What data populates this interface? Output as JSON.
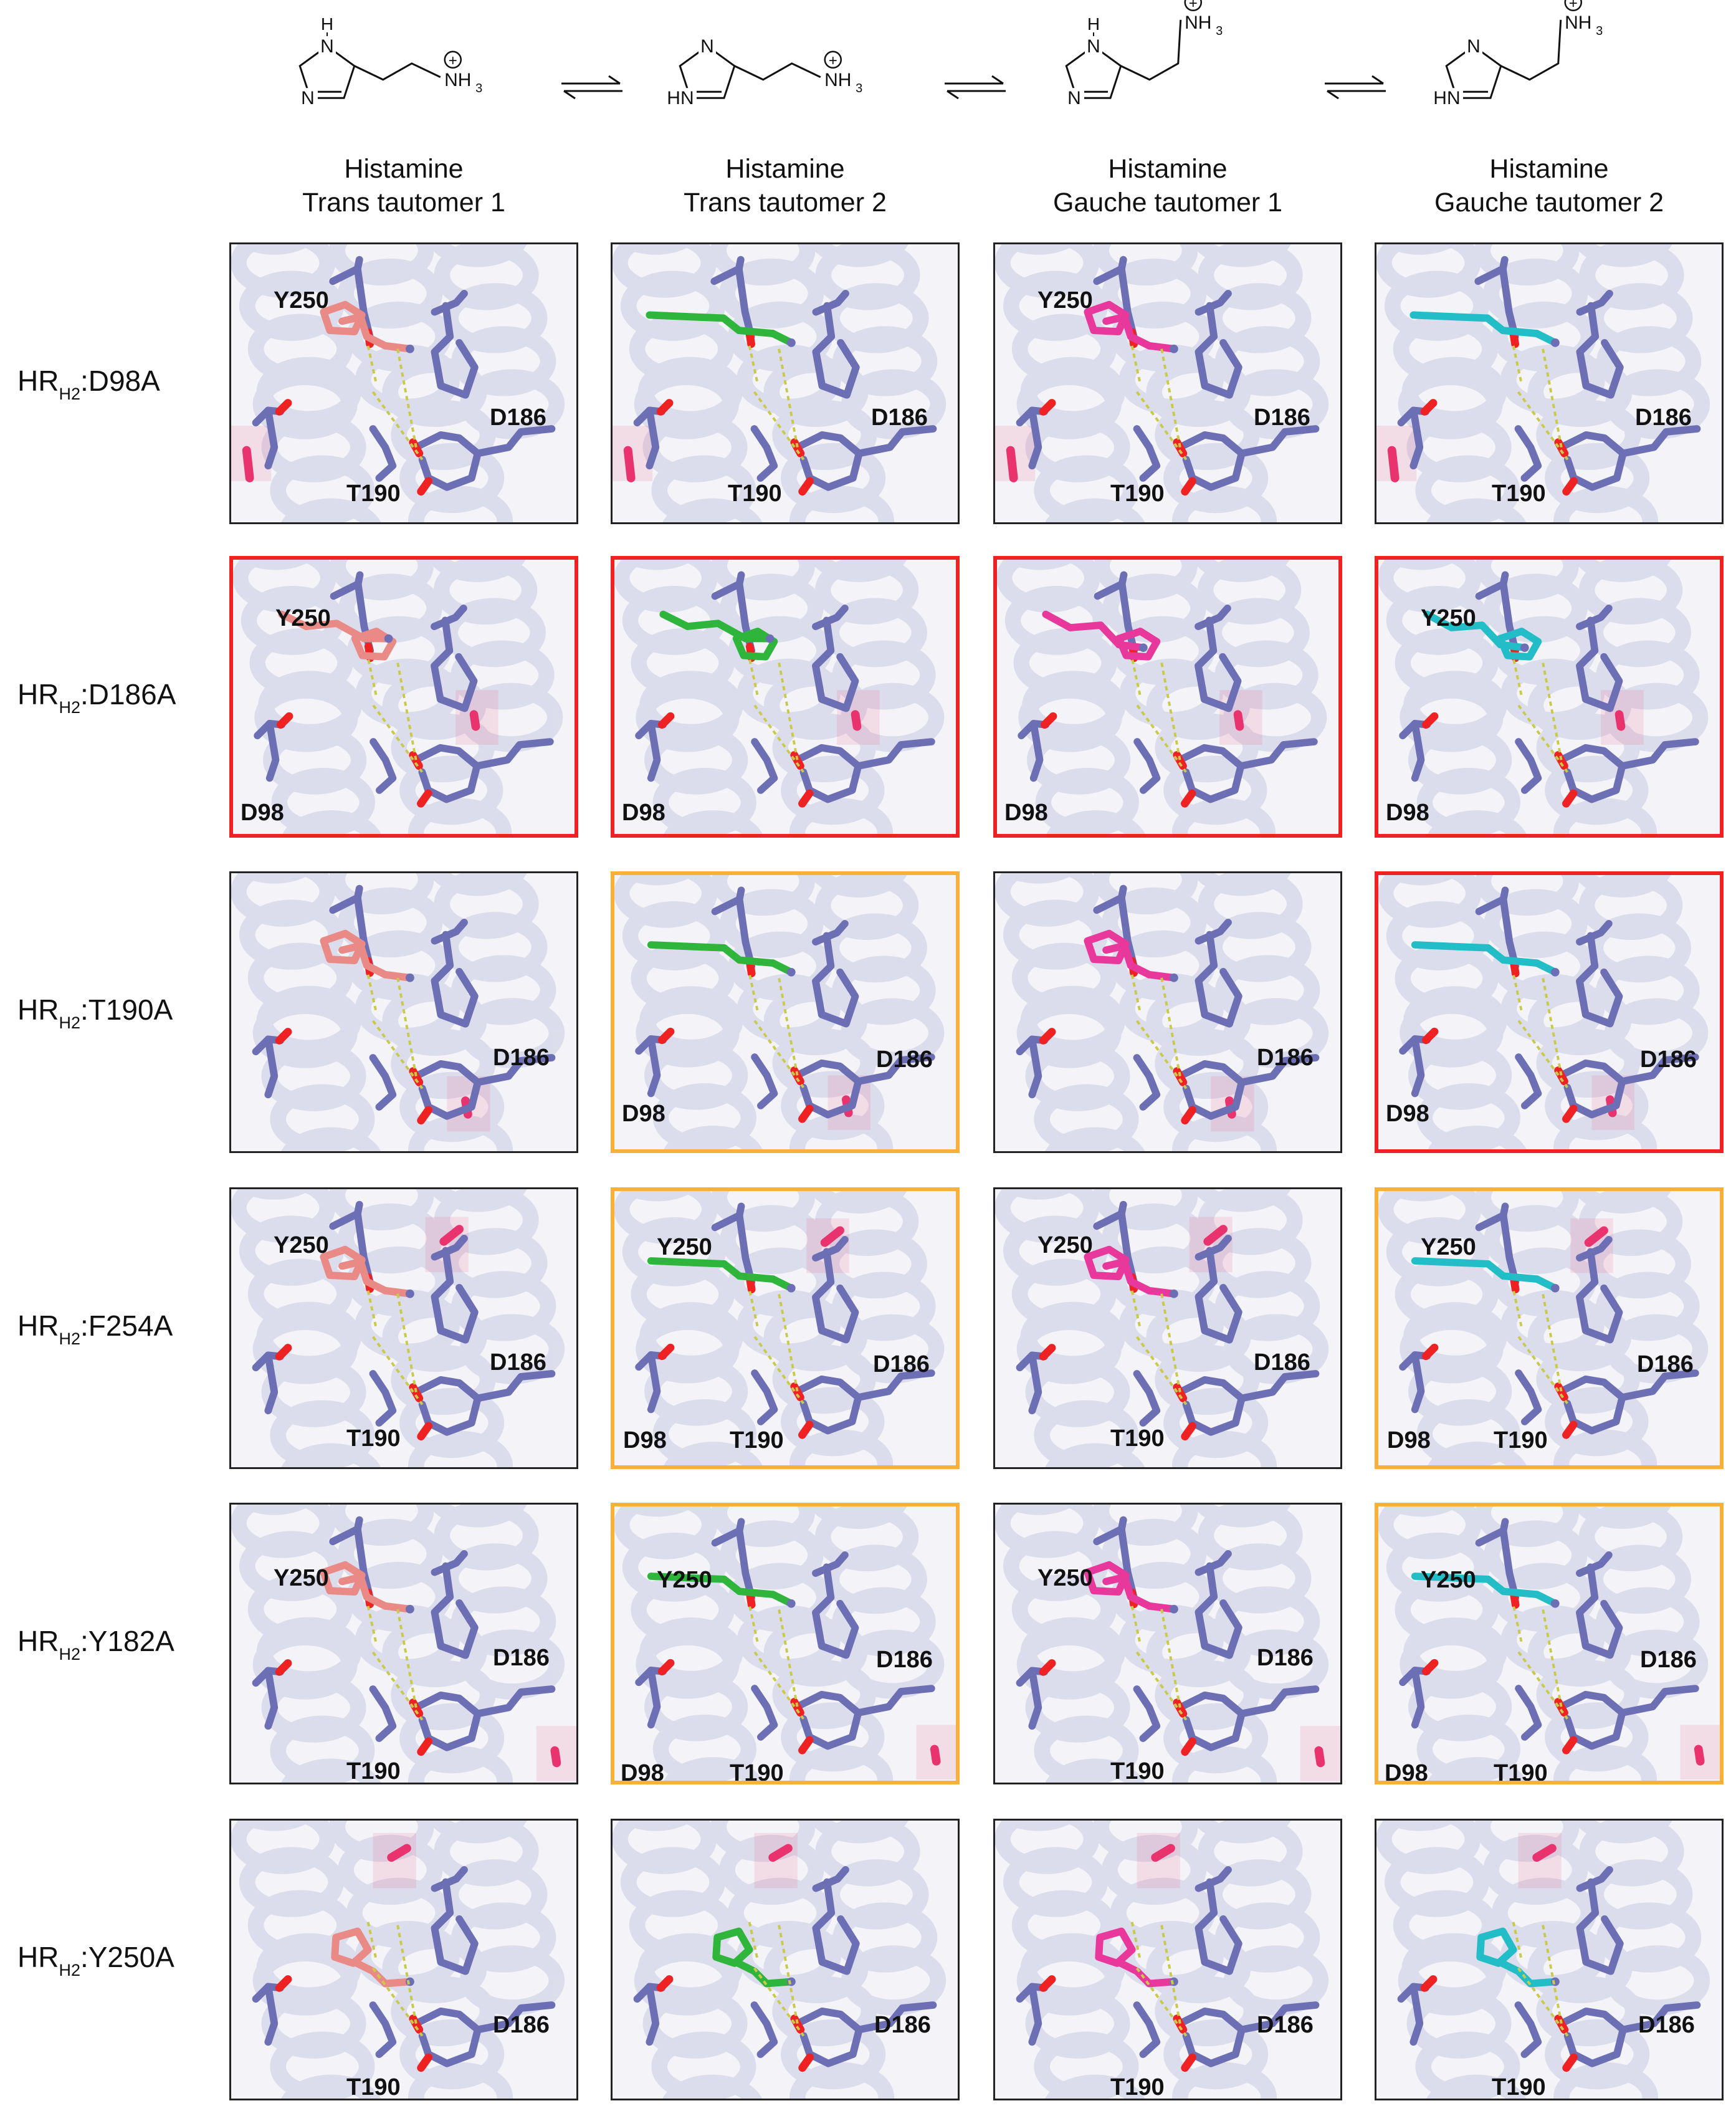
{
  "columns": [
    {
      "title": "Histamine",
      "subtitle": "Trans tautomer  1",
      "ligand_color": "#e98a86"
    },
    {
      "title": "Histamine",
      "subtitle": "Trans tautomer  2",
      "ligand_color": "#2fb43c"
    },
    {
      "title": "Histamine",
      "subtitle": "Gauche tautomer  1",
      "ligand_color": "#e8389b"
    },
    {
      "title": "Histamine",
      "subtitle": "Gauche tautomer  2",
      "ligand_color": "#22bdc6"
    }
  ],
  "structure_atoms": {
    "nh": "H",
    "n1": "N",
    "n2": "N",
    "hn": "HN",
    "nh3": "NH",
    "nh3_sub": "3",
    "charge": "+"
  },
  "rows": [
    {
      "label_prefix": "HR",
      "label_sub": "H2",
      "label_suffix": ":D98A",
      "panels": [
        {
          "border": "black",
          "labels": [
            "Y250",
            "D186",
            "T190"
          ]
        },
        {
          "border": "black",
          "labels": [
            "D186",
            "T190"
          ]
        },
        {
          "border": "black",
          "labels": [
            "Y250",
            "D186",
            "T190"
          ]
        },
        {
          "border": "black",
          "labels": [
            "D186",
            "T190"
          ]
        }
      ]
    },
    {
      "label_prefix": "HR",
      "label_sub": "H2",
      "label_suffix": ":D186A",
      "panels": [
        {
          "border": "red",
          "labels": [
            "Y250",
            "D98"
          ]
        },
        {
          "border": "red",
          "labels": [
            "D98"
          ]
        },
        {
          "border": "red",
          "labels": [
            "D98"
          ]
        },
        {
          "border": "red",
          "labels": [
            "Y250",
            "D98"
          ]
        }
      ]
    },
    {
      "label_prefix": "HR",
      "label_sub": "H2",
      "label_suffix": ":T190A",
      "panels": [
        {
          "border": "black",
          "labels": [
            "D186"
          ]
        },
        {
          "border": "orange",
          "labels": [
            "D186",
            "D98"
          ]
        },
        {
          "border": "black",
          "labels": [
            "D186"
          ]
        },
        {
          "border": "red",
          "labels": [
            "D186",
            "D98"
          ]
        }
      ]
    },
    {
      "label_prefix": "HR",
      "label_sub": "H2",
      "label_suffix": ":F254A",
      "panels": [
        {
          "border": "black",
          "labels": [
            "Y250",
            "D186",
            "T190"
          ]
        },
        {
          "border": "orange",
          "labels": [
            "Y250",
            "D186",
            "D98",
            "T190"
          ]
        },
        {
          "border": "black",
          "labels": [
            "Y250",
            "D186",
            "T190"
          ]
        },
        {
          "border": "orange",
          "labels": [
            "Y250",
            "D186",
            "D98",
            "T190"
          ]
        }
      ]
    },
    {
      "label_prefix": "HR",
      "label_sub": "H2",
      "label_suffix": ":Y182A",
      "panels": [
        {
          "border": "black",
          "labels": [
            "Y250",
            "D186",
            "T190"
          ]
        },
        {
          "border": "orange",
          "labels": [
            "Y250",
            "D186",
            "D98",
            "T190"
          ]
        },
        {
          "border": "black",
          "labels": [
            "Y250",
            "D186",
            "T190"
          ]
        },
        {
          "border": "orange",
          "labels": [
            "Y250",
            "D186",
            "D98",
            "T190"
          ]
        }
      ]
    },
    {
      "label_prefix": "HR",
      "label_sub": "H2",
      "label_suffix": ":Y250A",
      "panels": [
        {
          "border": "black",
          "labels": [
            "D186",
            "T190"
          ]
        },
        {
          "border": "black",
          "labels": [
            "D186"
          ]
        },
        {
          "border": "black",
          "labels": [
            "D186",
            "T190"
          ]
        },
        {
          "border": "black",
          "labels": [
            "D186",
            "T190"
          ]
        }
      ]
    }
  ],
  "colors": {
    "residue": "#6d6fb5",
    "oxygen": "#ee2222",
    "helix": "#d8d9ea",
    "mutated": "#e8336e",
    "hbond": "#c9c94a",
    "red_border": "#ee2222",
    "orange_border": "#f7b03a"
  }
}
